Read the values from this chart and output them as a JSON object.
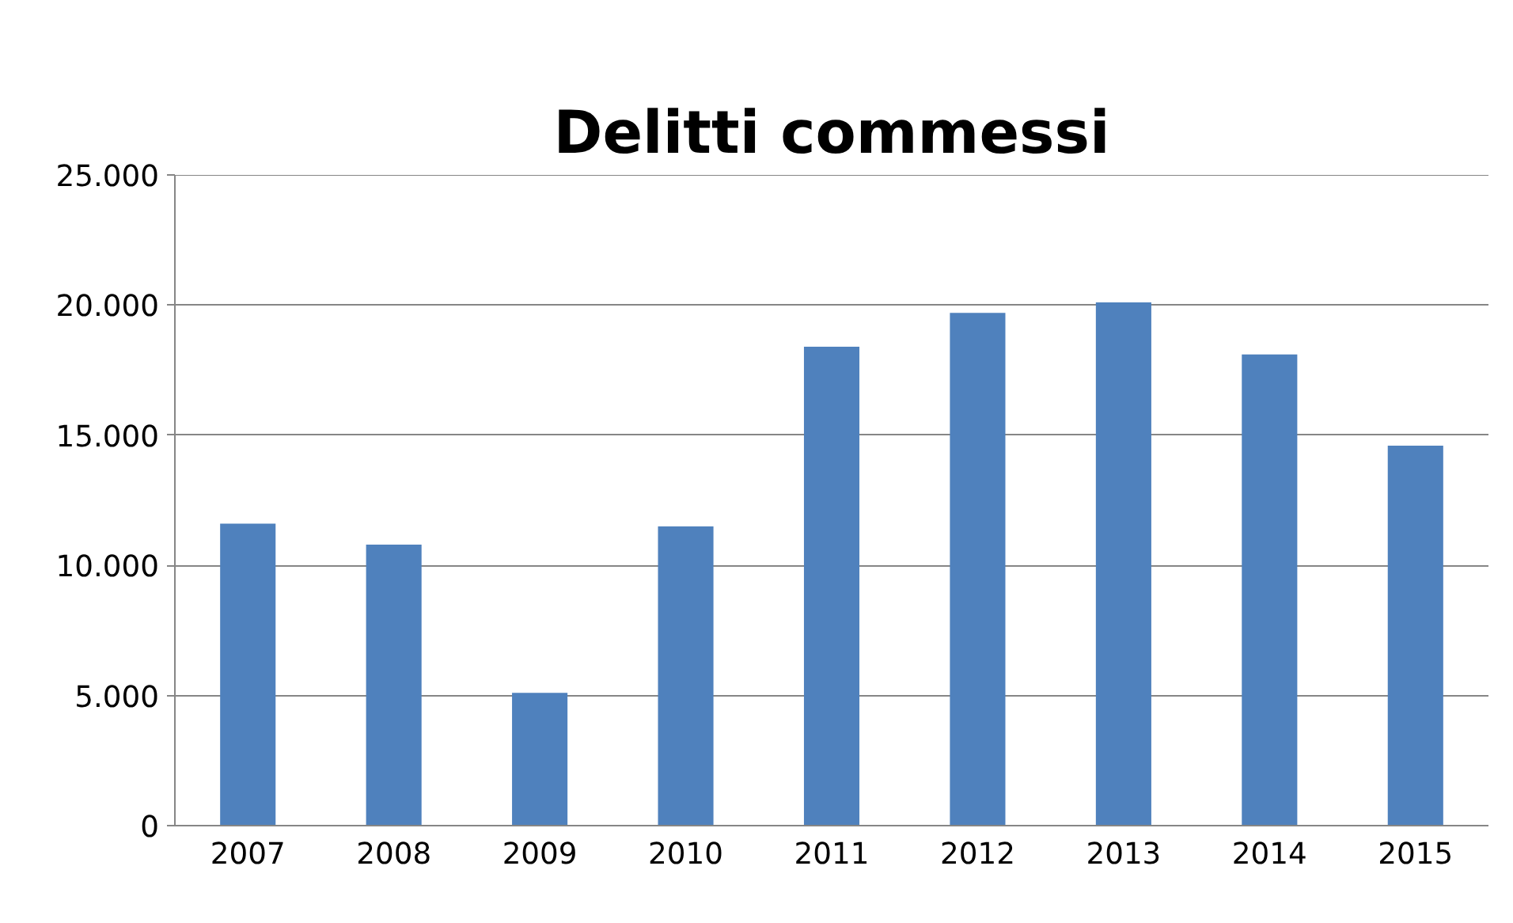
{
  "chart_data": {
    "type": "bar",
    "title": "Delitti commessi",
    "categories": [
      "2007",
      "2008",
      "2009",
      "2010",
      "2011",
      "2012",
      "2013",
      "2014",
      "2015"
    ],
    "values": [
      11600,
      10800,
      5100,
      11500,
      18400,
      19700,
      20100,
      18100,
      14600
    ],
    "color": "#4f81bd",
    "ylim": [
      0,
      25000
    ],
    "yticks": [
      0,
      {
        "value": 5000,
        "label": "5.000"
      },
      {
        "value": 10000,
        "label": "10.000"
      },
      {
        "value": 15000,
        "label": "15.000"
      },
      {
        "value": 20000,
        "label": "20.000"
      },
      {
        "value": 25000,
        "label": "25.000"
      }
    ],
    "grid": "y"
  }
}
